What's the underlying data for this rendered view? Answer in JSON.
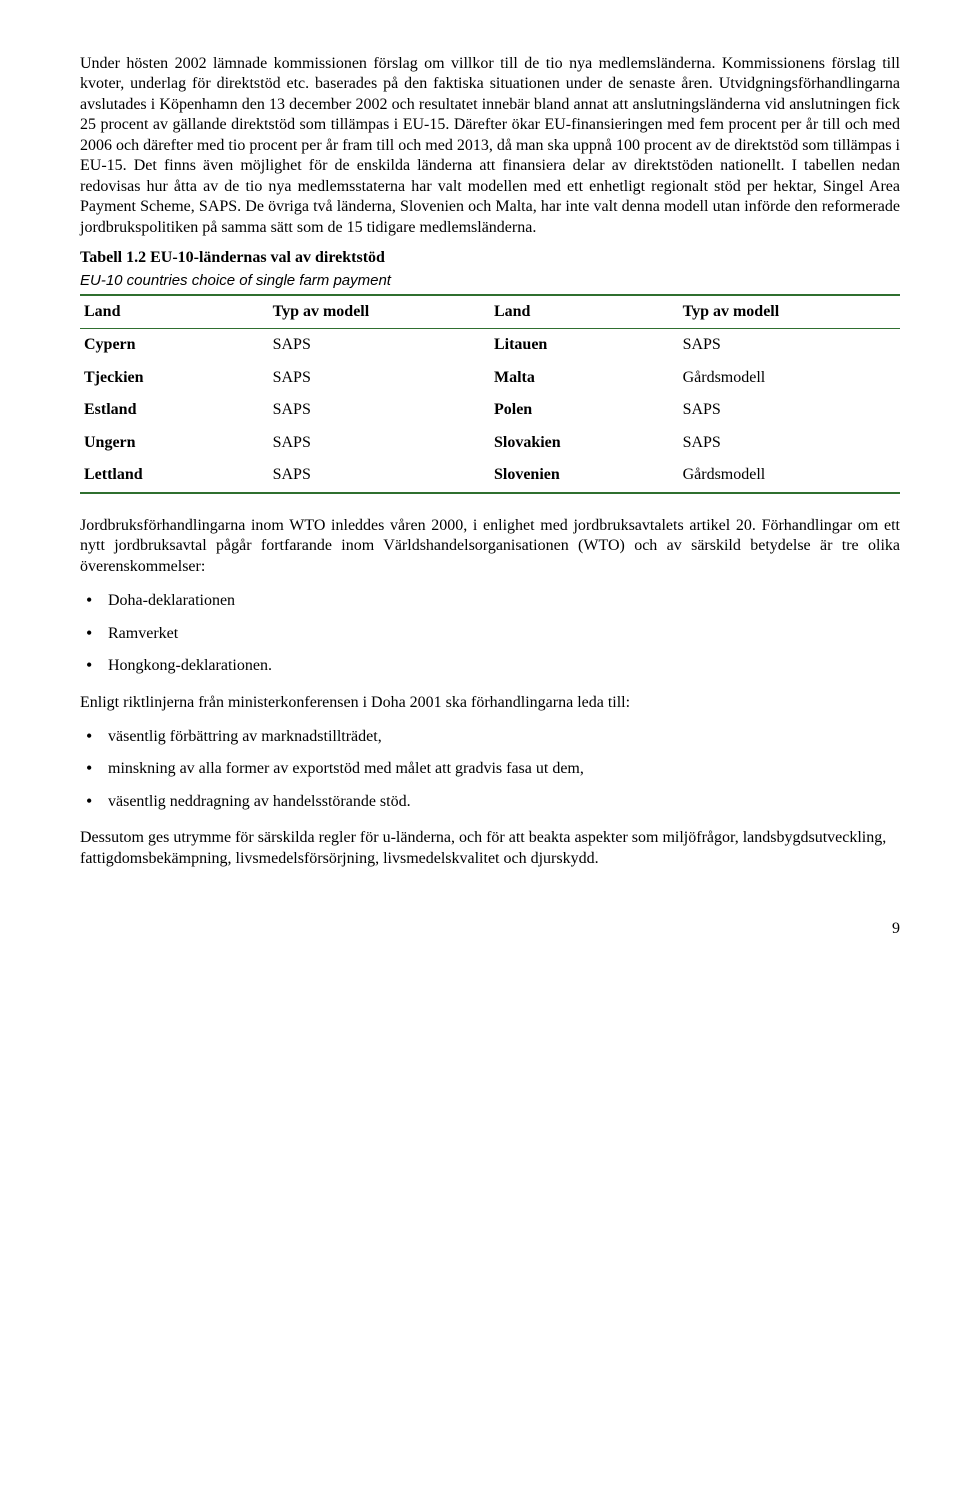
{
  "para1": "Under hösten 2002 lämnade kommissionen förslag om villkor till de tio nya medlemsländerna. Kommissionens förslag till kvoter, underlag för direktstöd etc. baserades på den faktiska situationen under de senaste åren. Utvidgningsförhandlingarna avslutades i Köpenhamn den 13 december 2002 och resultatet innebär bland annat att anslutningsländerna vid anslutningen fick 25 procent av gällande direktstöd som tillämpas i EU-15. Därefter ökar EU-finansieringen med fem procent per år till och med 2006 och därefter med tio procent per år fram till och med 2013, då man ska uppnå 100 procent av de direktstöd som tillämpas i EU-15. Det finns även möjlighet för de enskilda länderna att finansiera delar av direktstöden nationellt. I tabellen nedan redovisas hur åtta av de tio nya medlemsstaterna har valt modellen med ett enhetligt regionalt stöd per hektar, Singel Area Payment Scheme, SAPS. De övriga två länderna, Slovenien och Malta, har inte valt denna modell utan införde den reformerade jordbrukspolitiken på samma sätt som de 15 tidigare medlemsländerna.",
  "table": {
    "title": "Tabell 1.2 EU-10-ländernas val av direktstöd",
    "subtitle": "EU-10 countries choice of single farm payment",
    "headers": [
      "Land",
      "Typ av modell",
      "Land",
      "Typ av modell"
    ],
    "rows": [
      [
        "Cypern",
        "SAPS",
        "Litauen",
        "SAPS"
      ],
      [
        "Tjeckien",
        "SAPS",
        "Malta",
        "Gårdsmodell"
      ],
      [
        "Estland",
        "SAPS",
        "Polen",
        "SAPS"
      ],
      [
        "Ungern",
        "SAPS",
        "Slovakien",
        "SAPS"
      ],
      [
        "Lettland",
        "SAPS",
        "Slovenien",
        "Gårdsmodell"
      ]
    ],
    "col_widths": [
      "23%",
      "27%",
      "23%",
      "27%"
    ],
    "border_color": "#2f6f2f"
  },
  "para2": "Jordbruksförhandlingarna inom WTO inleddes våren 2000, i enlighet med jordbruksavtalets artikel 20. Förhandlingar om ett nytt jordbruksavtal pågår fortfarande inom Världshandelsorganisationen (WTO) och av särskild betydelse är tre olika överenskommelser:",
  "list1": [
    "Doha-deklarationen",
    "Ramverket",
    "Hongkong-deklarationen."
  ],
  "para3": "Enligt riktlinjerna från ministerkonferensen i Doha 2001 ska förhandlingarna leda till:",
  "list2": [
    "väsentlig förbättring av marknadstillträdet,",
    "minskning av alla former av exportstöd med målet att gradvis fasa ut dem,",
    "väsentlig neddragning av handelsstörande stöd."
  ],
  "para4": "Dessutom ges utrymme för särskilda regler för u-länderna, och för att beakta aspekter som miljöfrågor, landsbygdsutveckling, fattigdomsbekämpning, livsmedelsförsörjning, livsmedelskvalitet och djurskydd.",
  "page_number": "9"
}
